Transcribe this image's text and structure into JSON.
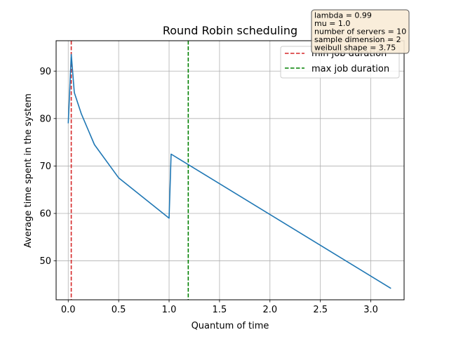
{
  "chart_data": {
    "type": "line",
    "title": "Round Robin scheduling",
    "xlabel": "Quantum of time",
    "ylabel": "Average time spent in the system",
    "xlim": [
      -0.12,
      3.33
    ],
    "ylim": [
      41.8,
      96.4
    ],
    "grid": true,
    "x_ticks": [
      0.0,
      0.5,
      1.0,
      1.5,
      2.0,
      2.5,
      3.0
    ],
    "x_tick_labels": [
      "0.0",
      "0.5",
      "1.0",
      "1.5",
      "2.0",
      "2.5",
      "3.0"
    ],
    "y_ticks": [
      50,
      60,
      70,
      80,
      90
    ],
    "y_tick_labels": [
      "50",
      "60",
      "70",
      "80",
      "90"
    ],
    "series": [
      {
        "name": "",
        "color": "#1f77b4",
        "x": [
          0.0,
          0.03,
          0.06,
          0.13,
          0.26,
          0.5,
          1.0,
          1.02,
          3.2
        ],
        "y": [
          79,
          93.5,
          85.5,
          81,
          74.5,
          67.5,
          59,
          72.5,
          44.2
        ]
      }
    ],
    "vlines": [
      {
        "name": "min job duration",
        "x": 0.03,
        "color": "#d62728",
        "dash": "dashed"
      },
      {
        "name": "max job duration",
        "x": 1.19,
        "color": "#008000",
        "dash": "dashed"
      }
    ],
    "legend": {
      "placement": "top-right",
      "entries": [
        "min job duration",
        "max job duration"
      ]
    },
    "annotation": {
      "lines": [
        "lambda = 0.99",
        "mu = 1.0",
        "number of servers = 10",
        "sample dimension = 2",
        "weibull shape = 3.75"
      ],
      "background": "#f8ebd6",
      "border": "#555555"
    }
  }
}
